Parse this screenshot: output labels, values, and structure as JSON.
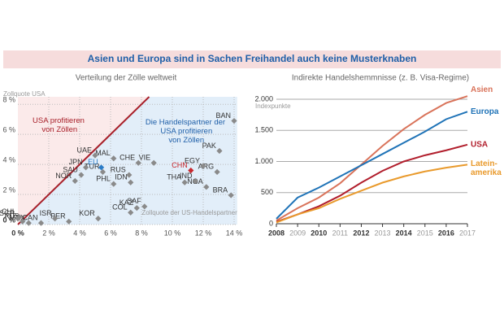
{
  "header": {
    "title": "Asien und Europa sind in Sachen Freihandel auch keine Musterknaben"
  },
  "chart_data": [
    {
      "type": "scatter",
      "title": "Verteilung der Zölle weltweit",
      "ylabel": "Zollquote USA",
      "xlabel": "Zollquote der US-Handelspartner",
      "annotations": [
        "USA profitieren von Zöllen",
        "Die Handelspartner der USA profitieren von Zöllen"
      ],
      "xlim": [
        0,
        14.2
      ],
      "ylim": [
        0,
        8.5
      ],
      "xticks": [
        {
          "value": 0,
          "label": "0 %"
        },
        {
          "value": 2,
          "label": "2 %"
        },
        {
          "value": 4,
          "label": "4 %"
        },
        {
          "value": 6,
          "label": "6 %"
        },
        {
          "value": 8,
          "label": "8 %"
        },
        {
          "value": 10,
          "label": "10 %"
        },
        {
          "value": 12,
          "label": "12 %"
        },
        {
          "value": 14,
          "label": "14 %"
        }
      ],
      "yticks": [
        {
          "value": 0,
          "label": "0 %"
        },
        {
          "value": 2,
          "label": "2 %"
        },
        {
          "value": 4,
          "label": "4 %"
        },
        {
          "value": 6,
          "label": "6 %"
        },
        {
          "value": 8,
          "label": "8 %"
        }
      ],
      "grid": true,
      "color": "#8a8a8a",
      "highlight_colors": {
        "EU": "#2a7cc7",
        "CHN": "#c8282e"
      },
      "diagonal_color": "#a8202a",
      "labels": [
        "BAN",
        "PAK",
        "ARG",
        "BRA",
        "NGA",
        "EGY",
        "IND",
        "THA",
        "CHN",
        "VIE",
        "CHE",
        "MAL",
        "RUS",
        "IDN",
        "PHL",
        "TUR",
        "EU",
        "UAE",
        "JPN",
        "SAU",
        "NOR",
        "KOR",
        "COL",
        "KAZ",
        "SAF",
        "PER",
        "ISR",
        "CAN",
        "MEX",
        "AUS",
        "CHL",
        "SGP"
      ],
      "x": [
        14,
        13.05,
        12.9,
        13.8,
        12.2,
        12,
        11.5,
        10.8,
        11.2,
        8.8,
        7.8,
        6.2,
        7.2,
        7.3,
        6.2,
        5.5,
        5.4,
        5,
        4.4,
        4.1,
        3.7,
        5.2,
        7.3,
        7.7,
        8.2,
        3.3,
        2.4,
        1.5,
        0.7,
        0.3,
        0.1,
        0
      ],
      "values": [
        6.9,
        4.9,
        3.5,
        1.95,
        2.5,
        3.9,
        2.9,
        2.8,
        3.6,
        4.1,
        4.1,
        4.4,
        3.3,
        2.8,
        2.7,
        3.5,
        3.8,
        4.6,
        3.8,
        3.3,
        2.9,
        0.4,
        0.8,
        1.1,
        1.2,
        0.2,
        0.4,
        0.1,
        0.1,
        0.2,
        0.5,
        0.4
      ]
    },
    {
      "type": "line",
      "title": "Indirekte Handelshemmnisse (z. B. Visa-Regime)",
      "ylabel": "Indexpunkte",
      "x": [
        2008,
        2009,
        2010,
        2011,
        2012,
        2013,
        2014,
        2015,
        2016,
        2017
      ],
      "xlim": [
        2008,
        2017
      ],
      "xticks": [
        2008,
        2009,
        2010,
        2011,
        2012,
        2013,
        2014,
        2015,
        2016,
        2017
      ],
      "ylim": [
        0,
        2000
      ],
      "yticks": [
        0,
        500,
        {
          "value": 1000,
          "label": "1.000"
        },
        {
          "value": 1500,
          "label": "1.500"
        },
        {
          "value": 2000,
          "label": "2.000"
        }
      ],
      "grid": true,
      "series": [
        {
          "name": "Asien",
          "color": "#d9735a",
          "values": [
            50,
            250,
            420,
            650,
            950,
            1250,
            1520,
            1750,
            1940,
            2050
          ]
        },
        {
          "name": "Europa",
          "color": "#1f73b7",
          "values": [
            80,
            420,
            580,
            760,
            940,
            1120,
            1300,
            1480,
            1680,
            1800
          ]
        },
        {
          "name": "USA",
          "color": "#b11e2c",
          "values": [
            30,
            150,
            280,
            450,
            660,
            850,
            1000,
            1100,
            1180,
            1270
          ]
        },
        {
          "name": "Latein-amerika",
          "color": "#e99a2c",
          "values": [
            20,
            150,
            250,
            400,
            530,
            660,
            760,
            840,
            900,
            950
          ]
        }
      ]
    }
  ]
}
